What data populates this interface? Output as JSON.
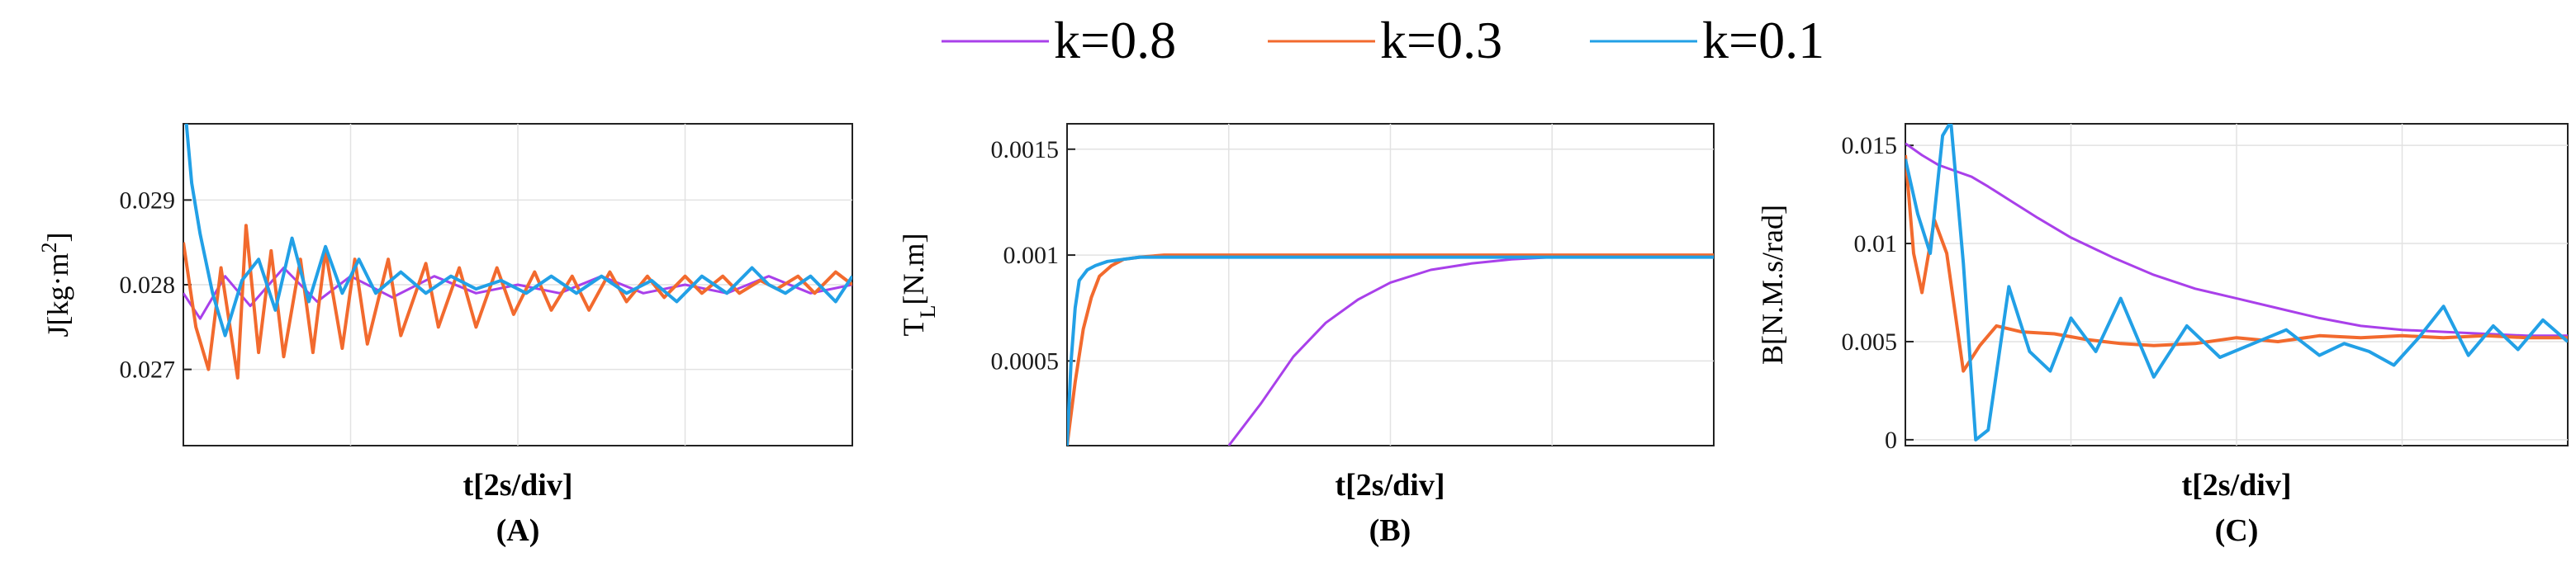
{
  "legend": [
    {
      "name": "k=0.8",
      "color": "#a940ea"
    },
    {
      "name": "k=0.3",
      "color": "#f26a2e"
    },
    {
      "name": "k=0.1",
      "color": "#22a0e6"
    }
  ],
  "chart_data": [
    {
      "type": "line",
      "panel_label": "(A)",
      "xlabel": "t[2s/div]",
      "ylabel": {
        "main": "J[kg·m",
        "sup": "2",
        "end": "]"
      },
      "xlim": [
        0,
        8
      ],
      "ylim": [
        0.0261,
        0.0299
      ],
      "yticks": [
        0.027,
        0.028,
        0.029
      ],
      "ytick_labels": [
        "0.027",
        "0.028",
        "0.029"
      ],
      "grid": true,
      "series": [
        {
          "name": "k=0.8",
          "x": [
            0,
            0.2,
            0.5,
            0.8,
            1.2,
            1.6,
            2.0,
            2.5,
            3,
            3.5,
            4,
            4.5,
            5,
            5.5,
            6,
            6.5,
            7,
            7.5,
            8
          ],
          "y": [
            0.0279,
            0.0276,
            0.0281,
            0.02775,
            0.0282,
            0.0278,
            0.0281,
            0.02785,
            0.0281,
            0.0279,
            0.028,
            0.0279,
            0.0281,
            0.0279,
            0.028,
            0.0279,
            0.0281,
            0.0279,
            0.028
          ]
        },
        {
          "name": "k=0.3",
          "x": [
            0,
            0.15,
            0.3,
            0.45,
            0.65,
            0.75,
            0.9,
            1.05,
            1.2,
            1.4,
            1.55,
            1.7,
            1.9,
            2.05,
            2.2,
            2.45,
            2.6,
            2.9,
            3.05,
            3.3,
            3.5,
            3.75,
            3.95,
            4.2,
            4.4,
            4.65,
            4.85,
            5.1,
            5.3,
            5.55,
            5.75,
            6.0,
            6.2,
            6.45,
            6.65,
            6.9,
            7.1,
            7.35,
            7.55,
            7.8,
            8
          ],
          "y": [
            0.0285,
            0.0275,
            0.027,
            0.0282,
            0.0269,
            0.0287,
            0.0272,
            0.0284,
            0.02715,
            0.0283,
            0.0272,
            0.0284,
            0.02725,
            0.0283,
            0.0273,
            0.0283,
            0.0274,
            0.02825,
            0.0275,
            0.0282,
            0.0275,
            0.0282,
            0.02765,
            0.02815,
            0.0277,
            0.0281,
            0.0277,
            0.02815,
            0.0278,
            0.0281,
            0.02785,
            0.0281,
            0.0279,
            0.0281,
            0.0279,
            0.02805,
            0.02795,
            0.0281,
            0.0279,
            0.02815,
            0.028
          ]
        },
        {
          "name": "k=0.1",
          "x": [
            0,
            0.1,
            0.2,
            0.35,
            0.5,
            0.7,
            0.9,
            1.1,
            1.3,
            1.5,
            1.7,
            1.9,
            2.1,
            2.3,
            2.6,
            2.9,
            3.2,
            3.5,
            3.8,
            4.1,
            4.4,
            4.7,
            5.0,
            5.3,
            5.6,
            5.9,
            6.2,
            6.5,
            6.8,
            7.0,
            7.2,
            7.5,
            7.8,
            8
          ],
          "y": [
            0.0303,
            0.0292,
            0.0286,
            0.0279,
            0.0274,
            0.02805,
            0.0283,
            0.0277,
            0.02855,
            0.0278,
            0.02845,
            0.0279,
            0.0283,
            0.0279,
            0.02815,
            0.0279,
            0.0281,
            0.02795,
            0.02805,
            0.0279,
            0.0281,
            0.0279,
            0.0281,
            0.0279,
            0.02805,
            0.0278,
            0.0281,
            0.0279,
            0.0282,
            0.028,
            0.0279,
            0.0281,
            0.0278,
            0.0281
          ]
        }
      ]
    },
    {
      "type": "line",
      "panel_label": "(B)",
      "xlabel": "t[2s/div]",
      "ylabel": {
        "main": "T",
        "sub": "L",
        "end": "[N.m]"
      },
      "xlim": [
        0,
        8
      ],
      "ylim": [
        0.0001,
        0.00162
      ],
      "yticks": [
        0.0005,
        0.001,
        0.0015
      ],
      "ytick_labels": [
        "0.0005",
        "0.001",
        "0.0015"
      ],
      "grid": true,
      "series": [
        {
          "name": "k=0.8",
          "x": [
            2.0,
            2.4,
            2.8,
            3.2,
            3.6,
            4.0,
            4.5,
            5.0,
            5.5,
            6.0,
            7.0,
            8.0
          ],
          "y": [
            0.0001,
            0.0003,
            0.00052,
            0.00068,
            0.00079,
            0.00087,
            0.00093,
            0.00096,
            0.00098,
            0.00099,
            0.00099,
            0.00099
          ]
        },
        {
          "name": "k=0.3",
          "x": [
            0.0,
            0.1,
            0.2,
            0.3,
            0.4,
            0.55,
            0.7,
            0.9,
            1.2,
            1.6,
            2.0,
            3.0,
            4.0,
            5.0,
            6.0,
            7.0,
            8.0
          ],
          "y": [
            0.0001,
            0.0004,
            0.00065,
            0.0008,
            0.0009,
            0.00095,
            0.00098,
            0.00099,
            0.001,
            0.001,
            0.001,
            0.001,
            0.001,
            0.001,
            0.001,
            0.001,
            0.001
          ]
        },
        {
          "name": "k=0.1",
          "x": [
            0.0,
            0.05,
            0.1,
            0.15,
            0.25,
            0.35,
            0.5,
            0.7,
            0.9,
            1.2,
            2.0,
            3.0,
            4.0,
            5.0,
            6.0,
            7.0,
            8.0
          ],
          "y": [
            0.0001,
            0.0005,
            0.00075,
            0.00088,
            0.00093,
            0.00095,
            0.00097,
            0.00098,
            0.00099,
            0.00099,
            0.00099,
            0.00099,
            0.00099,
            0.00099,
            0.00099,
            0.00099,
            0.00099
          ]
        }
      ]
    },
    {
      "type": "line",
      "panel_label": "(C)",
      "xlabel": "t[2s/div]",
      "ylabel": {
        "main": "B[N.M.s/rad]"
      },
      "xlim": [
        0,
        8
      ],
      "ylim": [
        -0.0003,
        0.0161
      ],
      "yticks": [
        0,
        0.005,
        0.01,
        0.015
      ],
      "ytick_labels": [
        "0",
        "0.005",
        "0.01",
        "0.015"
      ],
      "grid": true,
      "series": [
        {
          "name": "k=0.8",
          "x": [
            0,
            0.2,
            0.4,
            0.6,
            0.8,
            1.0,
            1.3,
            1.6,
            2.0,
            2.5,
            3.0,
            3.5,
            4.0,
            4.5,
            5.0,
            5.5,
            6.0,
            6.5,
            7.0,
            7.5,
            8.0
          ],
          "y": [
            0.0151,
            0.0145,
            0.014,
            0.0137,
            0.0134,
            0.0129,
            0.0121,
            0.0113,
            0.0103,
            0.0093,
            0.0084,
            0.0077,
            0.0072,
            0.0067,
            0.0062,
            0.0058,
            0.0056,
            0.0055,
            0.0054,
            0.0053,
            0.0053
          ]
        },
        {
          "name": "k=0.3",
          "x": [
            0,
            0.1,
            0.2,
            0.35,
            0.5,
            0.7,
            0.9,
            1.1,
            1.4,
            1.8,
            2.2,
            2.6,
            3.0,
            3.5,
            4.0,
            4.5,
            5.0,
            5.5,
            6.0,
            6.5,
            7.0,
            7.5,
            8.0
          ],
          "y": [
            0.0145,
            0.0095,
            0.0075,
            0.0112,
            0.0095,
            0.0035,
            0.0048,
            0.0058,
            0.0055,
            0.0054,
            0.0051,
            0.0049,
            0.0048,
            0.0049,
            0.0052,
            0.005,
            0.0053,
            0.0052,
            0.0053,
            0.0052,
            0.0053,
            0.0052,
            0.0052
          ]
        },
        {
          "name": "k=0.1",
          "x": [
            0,
            0.15,
            0.3,
            0.45,
            0.55,
            0.7,
            0.85,
            1.0,
            1.25,
            1.5,
            1.75,
            2.0,
            2.3,
            2.6,
            3.0,
            3.4,
            3.8,
            4.2,
            4.6,
            5.0,
            5.3,
            5.6,
            5.9,
            6.2,
            6.5,
            6.8,
            7.1,
            7.4,
            7.7,
            8.0
          ],
          "y": [
            0.0143,
            0.0115,
            0.0095,
            0.0155,
            0.0162,
            0.009,
            0.0,
            0.0005,
            0.0078,
            0.0045,
            0.0035,
            0.0062,
            0.0045,
            0.0072,
            0.0032,
            0.0058,
            0.0042,
            0.0049,
            0.0056,
            0.0043,
            0.0049,
            0.0045,
            0.0038,
            0.0052,
            0.0068,
            0.0043,
            0.0058,
            0.0046,
            0.0061,
            0.005
          ]
        }
      ]
    }
  ]
}
